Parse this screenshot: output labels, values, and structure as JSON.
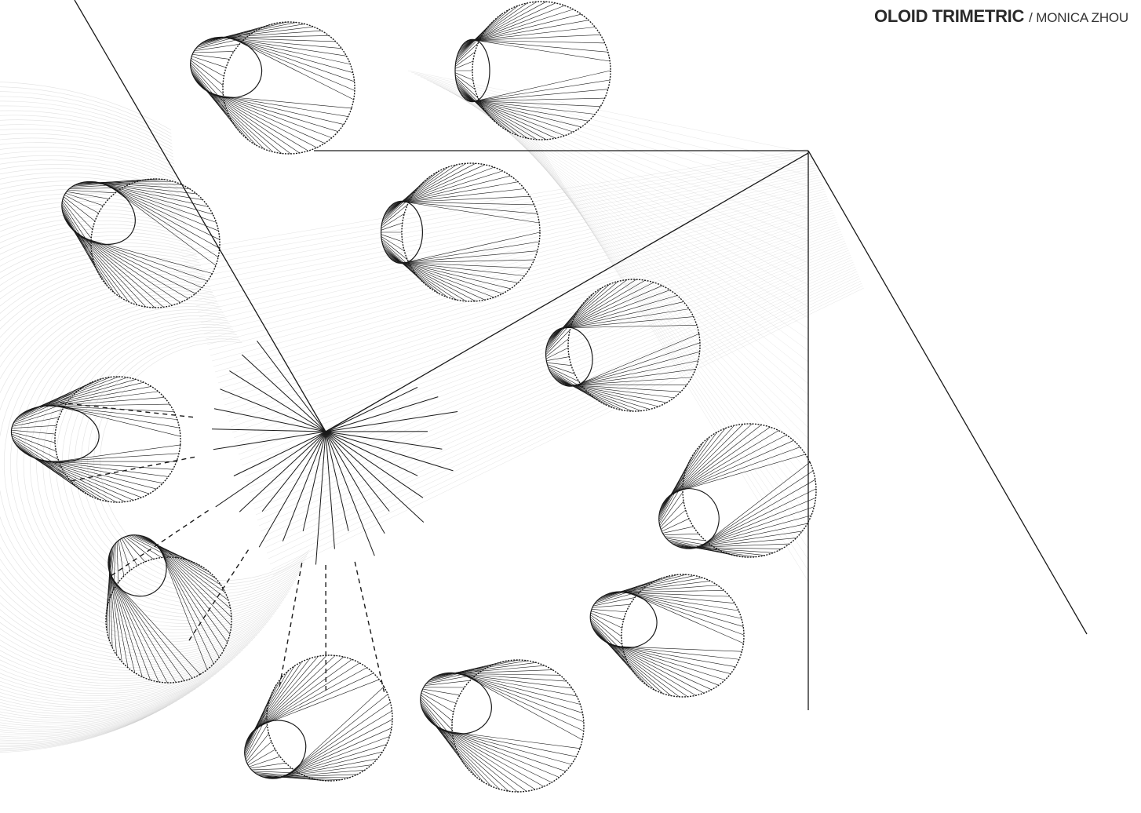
{
  "title": {
    "main": "OLOID TRIMETRIC",
    "separator": "/",
    "author": "MONICA ZHOU"
  },
  "drawing": {
    "subject": "oloid",
    "projection": "trimetric",
    "line_color": "#1a1a1a",
    "trace_color": "#c8c8c8",
    "background": "#ffffff"
  }
}
